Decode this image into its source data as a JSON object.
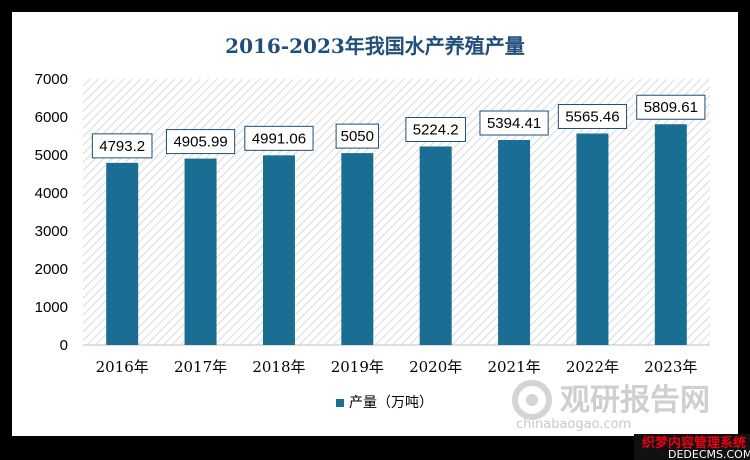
{
  "chart_data": {
    "type": "bar",
    "title": "2016-2023年我国水产养殖产量",
    "categories": [
      "2016年",
      "2017年",
      "2018年",
      "2019年",
      "2020年",
      "2021年",
      "2022年",
      "2023年"
    ],
    "series": [
      {
        "name": "产量（万吨）",
        "values": [
          4793.2,
          4905.99,
          4991.06,
          5050,
          5224.2,
          5394.41,
          5565.46,
          5809.61
        ],
        "labels": [
          "4793.2",
          "4905.99",
          "4991.06",
          "5050",
          "5224.2",
          "5394.41",
          "5565.46",
          "5809.61"
        ]
      }
    ],
    "ylim": [
      0,
      7000
    ],
    "yticks": [
      "0",
      "1000",
      "2000",
      "3000",
      "4000",
      "5000",
      "6000",
      "7000"
    ],
    "grid": false,
    "legend_position": "bottom",
    "colors": {
      "bar": "#1a6e93",
      "title": "#1f4e79",
      "frame": "#000000",
      "hatch": "#d9d9d9"
    }
  },
  "watermark": {
    "brand": "观研报告网",
    "url": "chinabaogao.com",
    "sub": "织梦内容管理系统",
    "domain": "DEDECMS.COM"
  }
}
